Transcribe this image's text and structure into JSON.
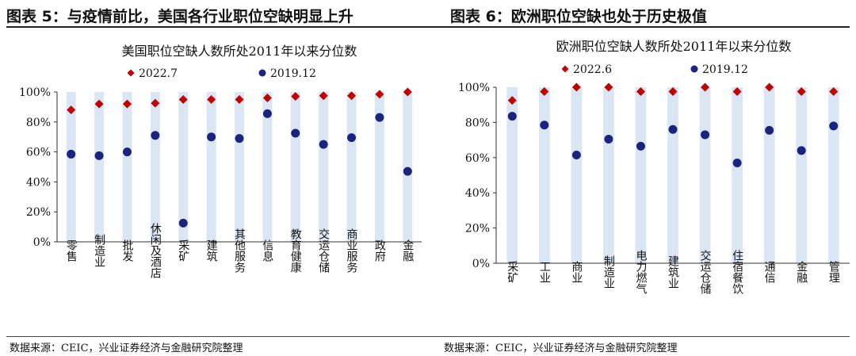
{
  "header": {
    "left_title": "图表 5：与疫情前比，美国各行业职位空缺明显上升",
    "right_title": "图表 6：欧洲职位空缺也处于历史极值"
  },
  "footer": {
    "left_source": "数据来源：CEIC，兴业证券经济与金融研究院整理",
    "right_source": "数据来源：CEIC，兴业证券经济与金融研究院整理"
  },
  "colors": {
    "bar": "#dbe6f5",
    "series_recent": "#c00000",
    "series_prior": "#1a237e"
  },
  "chart_data": [
    {
      "type": "scatter",
      "title": "美国职位空缺人数所处2011年以来分位数",
      "categories": [
        "零售",
        "制造业",
        "批发",
        "休闲及酒店",
        "采矿",
        "建筑",
        "其他服务",
        "信息",
        "教育健康",
        "交运仓储",
        "商业服务",
        "政府",
        "金融"
      ],
      "series": [
        {
          "name": "2022.7",
          "marker": "diamond",
          "values": [
            88,
            92,
            92,
            92.5,
            95,
            95,
            95,
            96,
            97,
            97.5,
            97.5,
            98.5,
            100
          ]
        },
        {
          "name": "2019.12",
          "marker": "circle",
          "values": [
            58.5,
            57.5,
            60,
            71,
            12.5,
            70,
            69,
            85.5,
            72.5,
            65,
            69.5,
            83,
            47
          ]
        }
      ],
      "bar_value": 100,
      "ylim": [
        0,
        100
      ],
      "yticks": [
        "0%",
        "20%",
        "40%",
        "60%",
        "80%",
        "100%"
      ],
      "legend": "top"
    },
    {
      "type": "scatter",
      "title": "欧洲职位空缺人数所处2011年以来分位数",
      "categories": [
        "采矿",
        "工业",
        "商业",
        "制造业",
        "电力燃气",
        "建筑业",
        "交运仓储",
        "住宿餐饮",
        "通信",
        "金融",
        "管理"
      ],
      "series": [
        {
          "name": "2022.6",
          "marker": "diamond",
          "values": [
            92.5,
            97.5,
            100,
            100,
            97.5,
            97.5,
            100,
            97.5,
            100,
            97.5,
            97.5
          ]
        },
        {
          "name": "2019.12",
          "marker": "circle",
          "values": [
            83.5,
            78.5,
            61.5,
            70.5,
            66.5,
            76,
            73,
            57,
            75.5,
            64,
            78
          ]
        }
      ],
      "bar_value": 100,
      "ylim": [
        0,
        100
      ],
      "yticks": [
        "0%",
        "20%",
        "40%",
        "60%",
        "80%",
        "100%"
      ],
      "legend": "top"
    }
  ]
}
